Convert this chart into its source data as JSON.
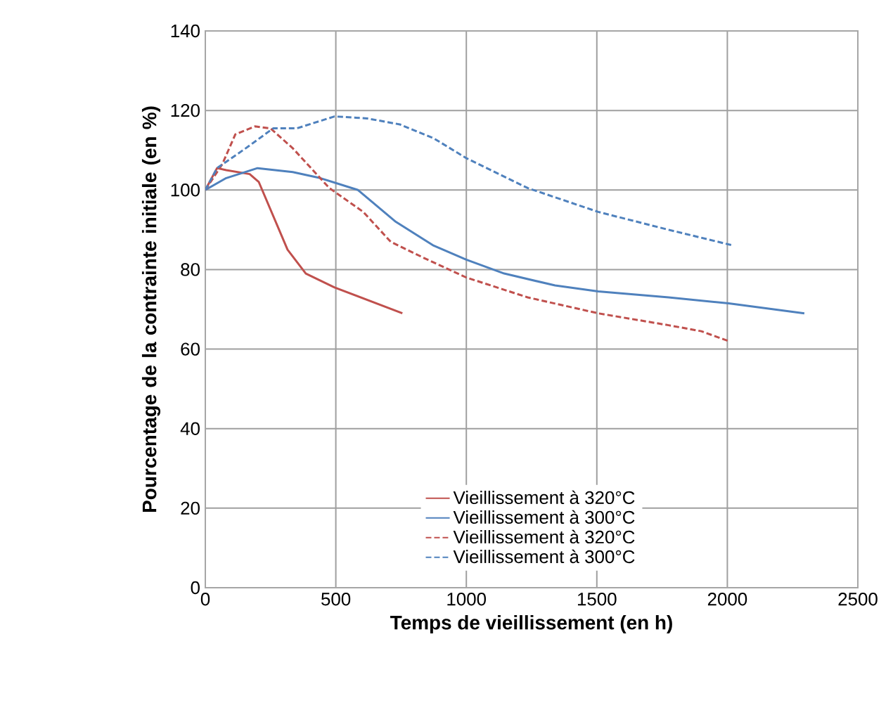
{
  "chart_data": {
    "type": "line",
    "xlabel": "Temps de vieillissement (en h)",
    "ylabel": "Pourcentage de la contrainte initiale (en %)",
    "xlim": [
      0,
      2500
    ],
    "xticks": [
      0,
      500,
      1000,
      1500,
      2000,
      2500
    ],
    "ylim": [
      0,
      140
    ],
    "yticks": [
      0,
      20,
      40,
      60,
      80,
      100,
      120,
      140
    ],
    "grid": true,
    "legend": "bottom",
    "marker": "none",
    "series": [
      {
        "name": "Vieillissement à 320°C",
        "color": "#c0504d",
        "line_style": "solid",
        "x": [
          0,
          45,
          80,
          170,
          205,
          260,
          315,
          385,
          495,
          755
        ],
        "values": [
          100,
          105.5,
          105,
          104,
          102,
          93.5,
          85,
          79,
          75.5,
          69
        ]
      },
      {
        "name": "Vieillissement à 300°C",
        "color": "#4f81bd",
        "line_style": "solid",
        "x": [
          0,
          80,
          200,
          335,
          440,
          585,
          730,
          875,
          1000,
          1145,
          1340,
          1505,
          1775,
          2005,
          2295
        ],
        "values": [
          100,
          103,
          105.5,
          104.5,
          103,
          100,
          92,
          86,
          82.5,
          79,
          76,
          74.5,
          73,
          71.5,
          69
        ]
      },
      {
        "name": "Vieillissement à 320°C",
        "color": "#c0504d",
        "line_style": "dashed",
        "x": [
          0,
          65,
          115,
          190,
          250,
          335,
          475,
          605,
          710,
          835,
          1000,
          1235,
          1505,
          1775,
          1900,
          2005
        ],
        "values": [
          100,
          106.5,
          114,
          116,
          115.5,
          110.5,
          100.5,
          94.5,
          87,
          83,
          78,
          73,
          69,
          66,
          64.5,
          62
        ]
      },
      {
        "name": "Vieillissement à 300°C",
        "color": "#4f81bd",
        "line_style": "dashed",
        "x": [
          0,
          45,
          155,
          260,
          350,
          495,
          620,
          745,
          875,
          1000,
          1235,
          1505,
          1775,
          2025
        ],
        "values": [
          100,
          105.5,
          110.5,
          115.5,
          115.5,
          118.5,
          118,
          116.5,
          113,
          108,
          100.5,
          94.5,
          90,
          86
        ]
      }
    ]
  }
}
